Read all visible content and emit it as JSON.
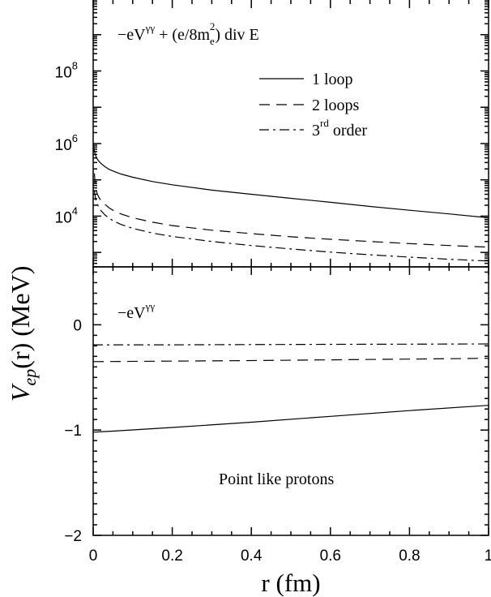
{
  "chart_data": [
    {
      "type": "line",
      "panel": "top",
      "yscale": "log",
      "annotation": {
        "lead": "−eV",
        "lead_sup": "γγ",
        "mid": " + (e/8m",
        "sub": "e",
        "sup": "2",
        "tail": ") div E"
      },
      "xlim": [
        0,
        1
      ],
      "ylim": [
        400,
        10000000000
      ],
      "y_ticks": [
        {
          "value": 100000000,
          "base": "10",
          "exp": "8"
        },
        {
          "value": 1000000,
          "base": "10",
          "exp": "6"
        },
        {
          "value": 10000,
          "base": "10",
          "exp": "4"
        }
      ],
      "legend": {
        "placement": "top-right",
        "entries": [
          {
            "series": 0,
            "text": "1 loop",
            "sup": "",
            "tail": ""
          },
          {
            "series": 1,
            "text": "2 loops",
            "sup": "",
            "tail": ""
          },
          {
            "series": 2,
            "text": "3",
            "sup": "rd",
            "tail": " order"
          }
        ]
      },
      "series": [
        {
          "label": "1 loop",
          "dash": "solid",
          "x": [
            0.0,
            0.003,
            0.006,
            0.01,
            0.015,
            0.02,
            0.03,
            0.04,
            0.05,
            0.07,
            0.1,
            0.15,
            0.2,
            0.3,
            0.4,
            0.5,
            0.6,
            0.7,
            0.8,
            0.9,
            1.0
          ],
          "y": [
            1000000,
            630000,
            470000,
            380000,
            320000,
            280000,
            230000,
            195000,
            175000,
            145000,
            118000,
            90000,
            73000,
            52000,
            40000,
            31000,
            24000,
            18500,
            14500,
            11500,
            9000
          ]
        },
        {
          "label": "2 loops",
          "dash": "dashed",
          "x": [
            0.003,
            0.006,
            0.01,
            0.015,
            0.02,
            0.03,
            0.04,
            0.05,
            0.07,
            0.1,
            0.15,
            0.2,
            0.3,
            0.4,
            0.5,
            0.6,
            0.7,
            0.8,
            0.9,
            1.0
          ],
          "y": [
            150000,
            60000,
            42000,
            32000,
            27000,
            21000,
            17000,
            14500,
            11500,
            9000,
            6800,
            5500,
            4100,
            3300,
            2700,
            2300,
            2000,
            1750,
            1550,
            1400
          ]
        },
        {
          "label": "3rd order",
          "dash": "dashdot",
          "x": [
            0.003,
            0.006,
            0.01,
            0.015,
            0.02,
            0.03,
            0.04,
            0.05,
            0.07,
            0.1,
            0.15,
            0.2,
            0.3,
            0.4,
            0.5,
            0.6,
            0.7,
            0.8,
            0.9,
            1.0
          ],
          "y": [
            50000,
            30000,
            22000,
            17000,
            14000,
            10800,
            8800,
            7500,
            5900,
            4600,
            3400,
            2750,
            2000,
            1550,
            1250,
            1020,
            860,
            740,
            650,
            580
          ]
        }
      ]
    },
    {
      "type": "line",
      "panel": "bottom",
      "annotation": {
        "lead": "−eV",
        "lead_sup": "γγ"
      },
      "label_text": "Point like protons",
      "xlim": [
        0,
        1
      ],
      "ylim": [
        -2,
        0.55
      ],
      "y_ticks": [
        {
          "value": 0,
          "label": "0"
        },
        {
          "value": -1,
          "label": "−1"
        },
        {
          "value": -2,
          "label": "−2"
        }
      ],
      "series": [
        {
          "label": "1 loop",
          "dash": "solid",
          "x": [
            0,
            0.05,
            0.2,
            0.4,
            0.6,
            0.8,
            1.0
          ],
          "y": [
            -1.02,
            -1.01,
            -0.975,
            -0.925,
            -0.87,
            -0.815,
            -0.765
          ]
        },
        {
          "label": "2 loops",
          "dash": "dashed",
          "x": [
            0,
            0.2,
            0.4,
            0.6,
            0.8,
            1.0
          ],
          "y": [
            -0.35,
            -0.345,
            -0.34,
            -0.333,
            -0.326,
            -0.318
          ]
        },
        {
          "label": "3rd order",
          "dash": "dashdot",
          "x": [
            0,
            0.2,
            0.4,
            0.6,
            0.8,
            1.0
          ],
          "y": [
            -0.19,
            -0.19,
            -0.188,
            -0.186,
            -0.184,
            -0.182
          ]
        }
      ]
    }
  ],
  "x_axis": {
    "ticks": [
      {
        "value": 0,
        "label": "0"
      },
      {
        "value": 0.2,
        "label": "0.2"
      },
      {
        "value": 0.4,
        "label": "0.4"
      },
      {
        "value": 0.6,
        "label": "0.6"
      },
      {
        "value": 0.8,
        "label": "0.8"
      },
      {
        "value": 1.0,
        "label": "1"
      }
    ],
    "label": "r (fm)"
  },
  "y_axis": {
    "label_main": "V",
    "label_sub": "ep",
    "label_tail": "(r) (MeV)"
  }
}
